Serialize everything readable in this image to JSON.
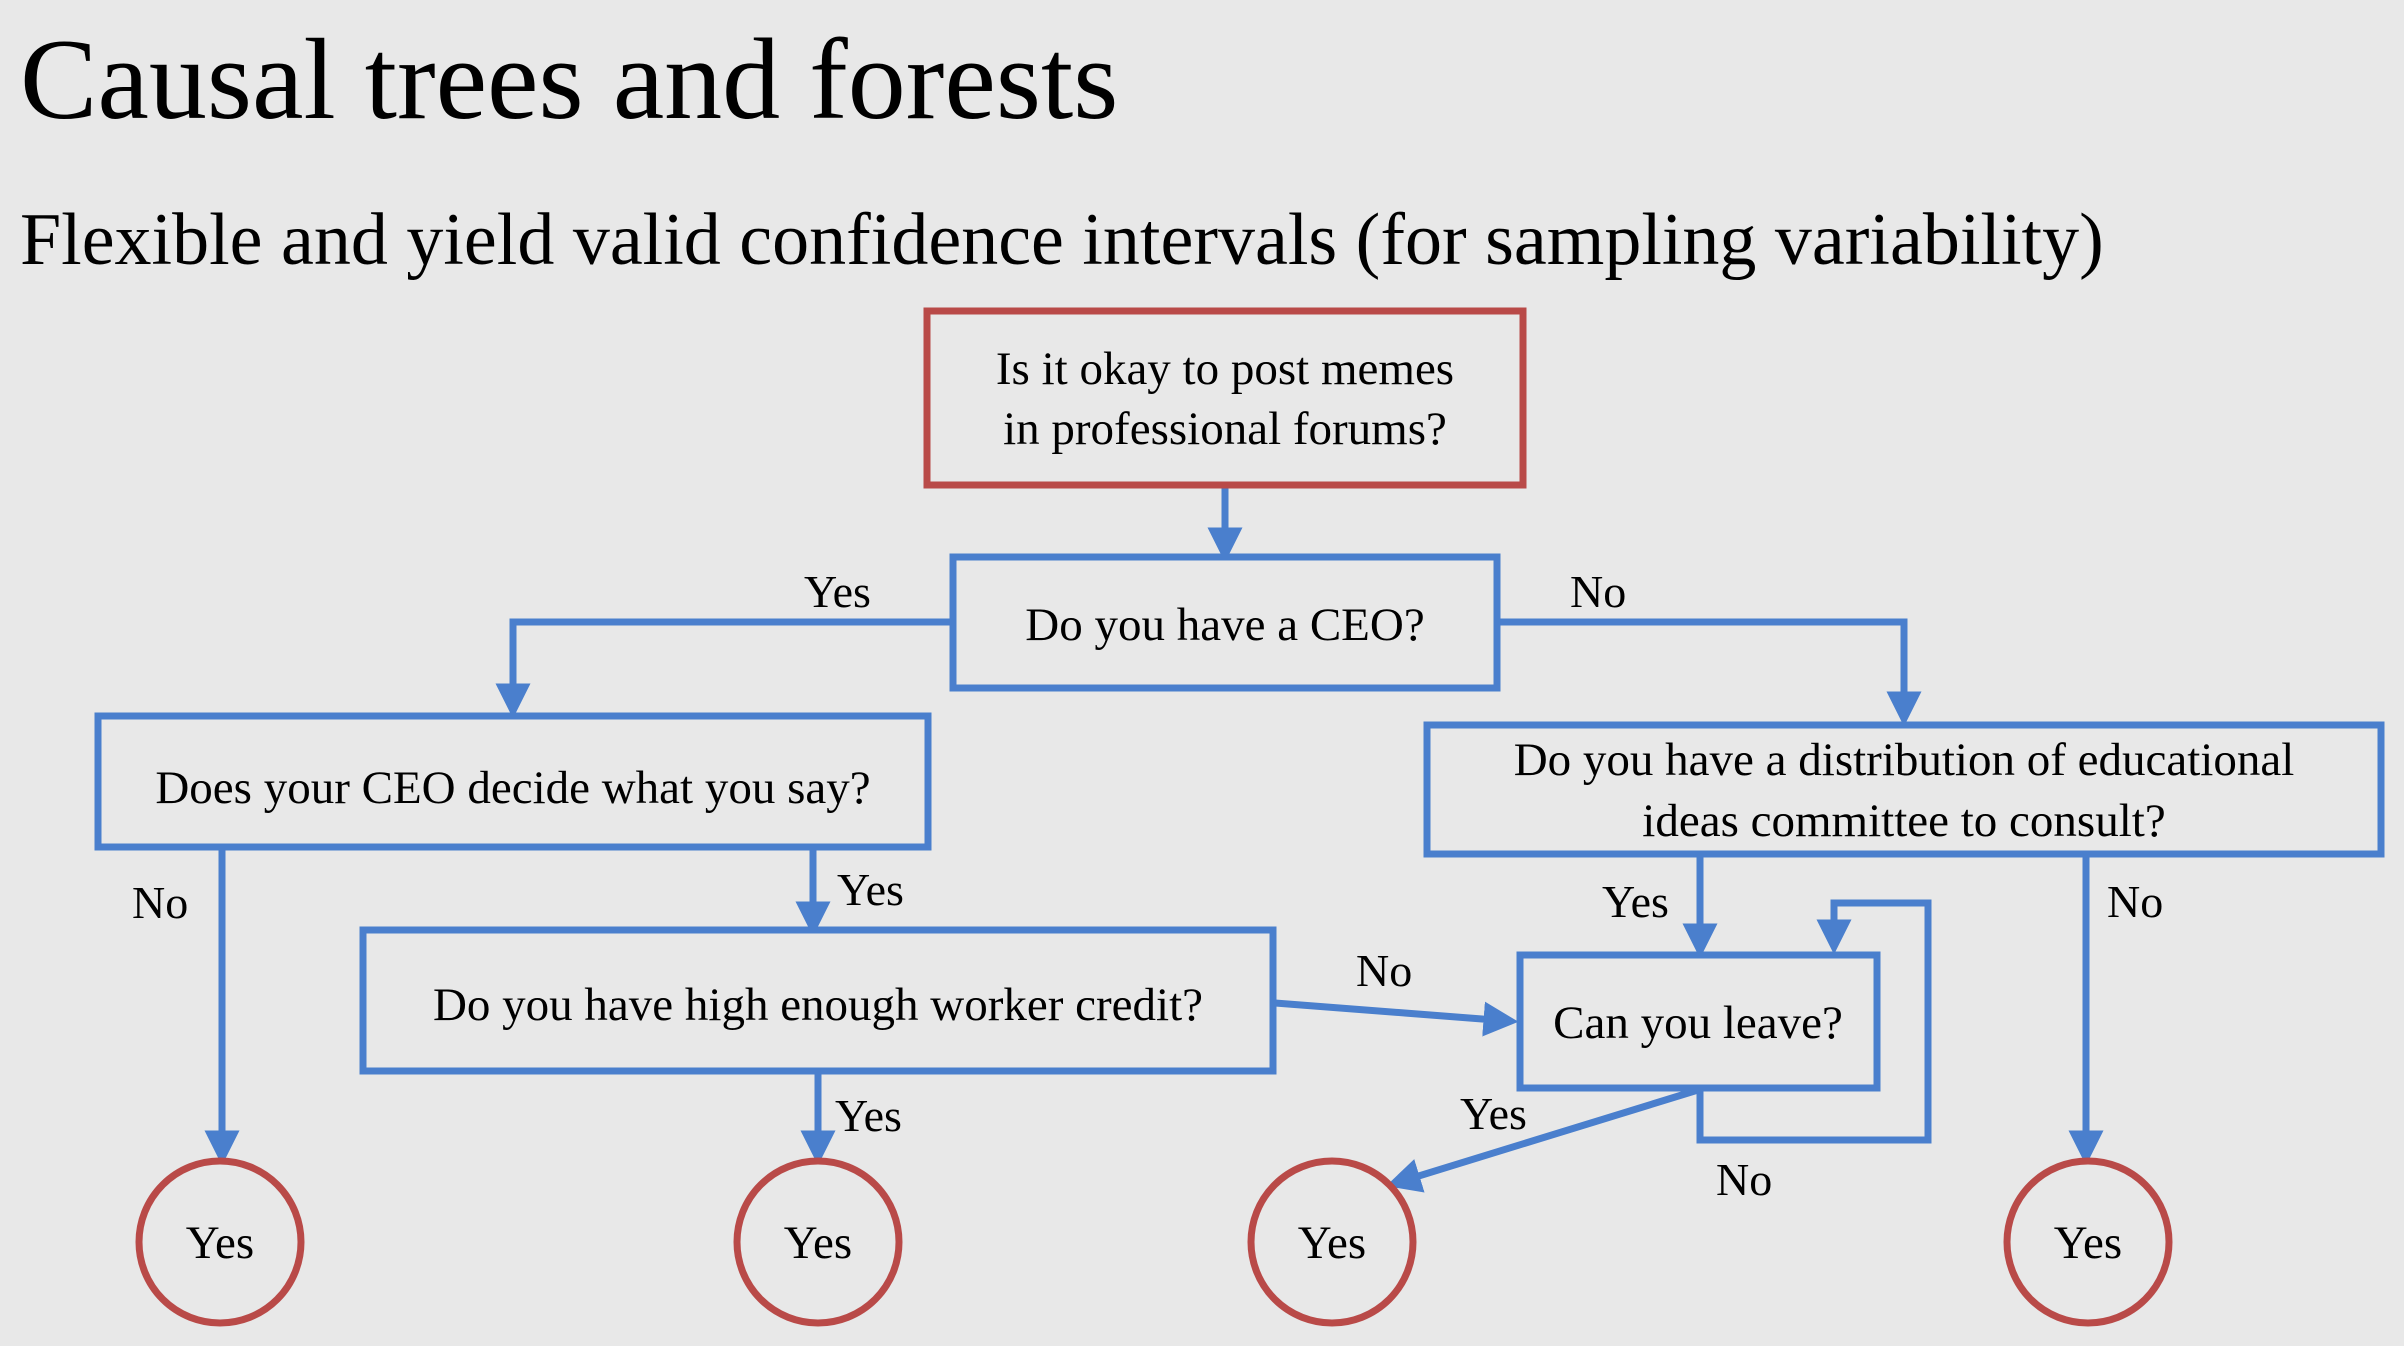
{
  "title": "Causal trees and forests",
  "subtitle": "Flexible and yield valid confidence intervals (for sampling variability)",
  "colors": {
    "background": "#e8e8e8",
    "box_blue": "#4a7fcd",
    "root_red": "#b94a48"
  },
  "nodes": {
    "root": {
      "line1": "Is it okay to post memes",
      "line2": "in professional forums?"
    },
    "ceo": {
      "text": "Do you have a CEO?"
    },
    "ceo_decide": {
      "text": "Does your CEO decide what you say?"
    },
    "committee": {
      "line1": "Do you have a distribution of  educational",
      "line2": "ideas committee to consult?"
    },
    "credit": {
      "text": "Do you have high enough worker credit?"
    },
    "leave": {
      "text": "Can you leave?"
    },
    "leaf_1": {
      "text": "Yes"
    },
    "leaf_2": {
      "text": "Yes"
    },
    "leaf_3": {
      "text": "Yes"
    },
    "leaf_4": {
      "text": "Yes"
    }
  },
  "edges": {
    "ceo_yes": "Yes",
    "ceo_no": "No",
    "ceo_decide_no": "No",
    "ceo_decide_yes": "Yes",
    "credit_no": "No",
    "credit_yes": "Yes",
    "committee_yes": "Yes",
    "committee_no": "No",
    "leave_yes": "Yes",
    "leave_no": "No"
  }
}
